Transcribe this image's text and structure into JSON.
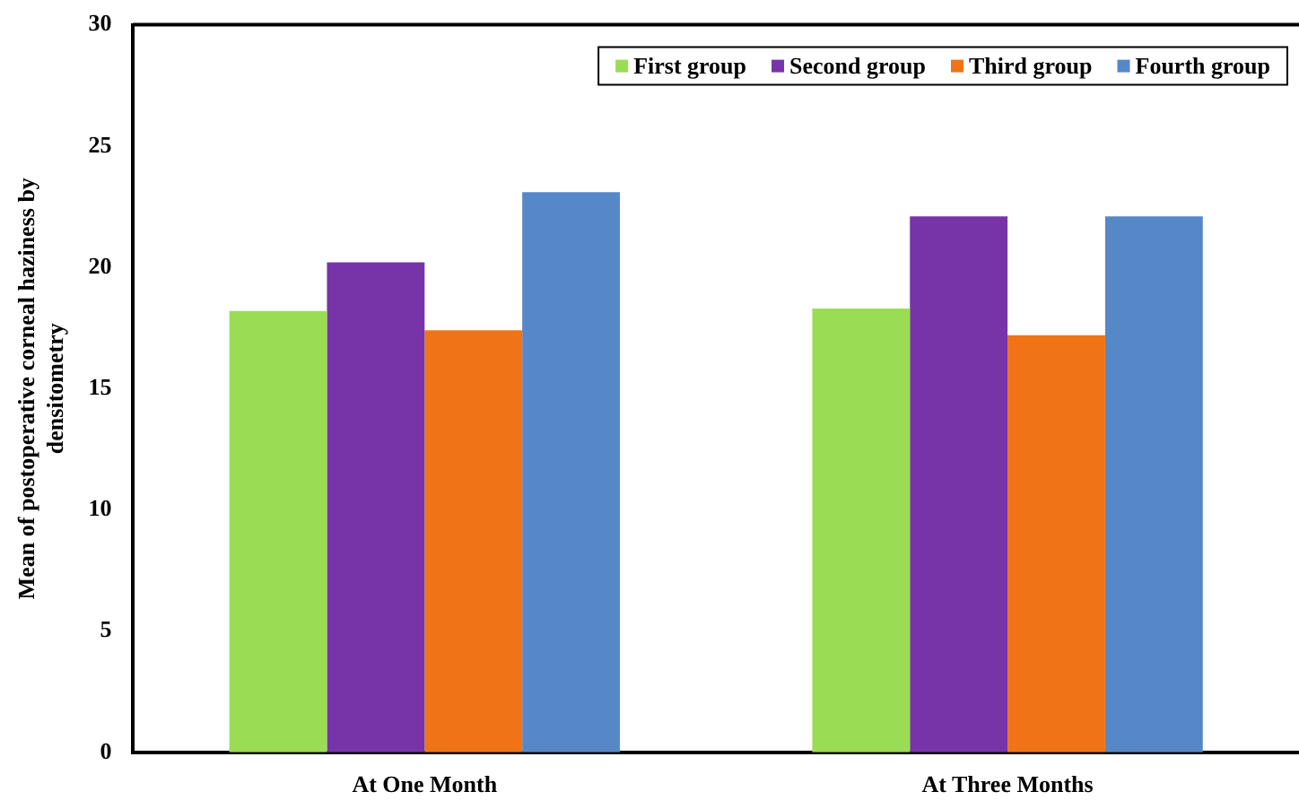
{
  "chart_data": {
    "type": "bar",
    "ylabel": "Mean of postoperative corneal haziness by densitometry",
    "categories": [
      "At One Month",
      "At Three Months"
    ],
    "series": [
      {
        "name": "First group",
        "color": "#9bdc55",
        "values": [
          18.2,
          18.3
        ]
      },
      {
        "name": "Second group",
        "color": "#7733a8",
        "values": [
          20.2,
          22.1
        ]
      },
      {
        "name": "Third group",
        "color": "#f07416",
        "values": [
          17.4,
          17.2
        ]
      },
      {
        "name": "Fourth group",
        "color": "#5688c8",
        "values": [
          23.1,
          22.1
        ]
      }
    ],
    "ylim": [
      0,
      30
    ],
    "yticks": [
      0,
      5,
      10,
      15,
      20,
      25,
      30
    ],
    "grid": false,
    "legend": "top right"
  }
}
